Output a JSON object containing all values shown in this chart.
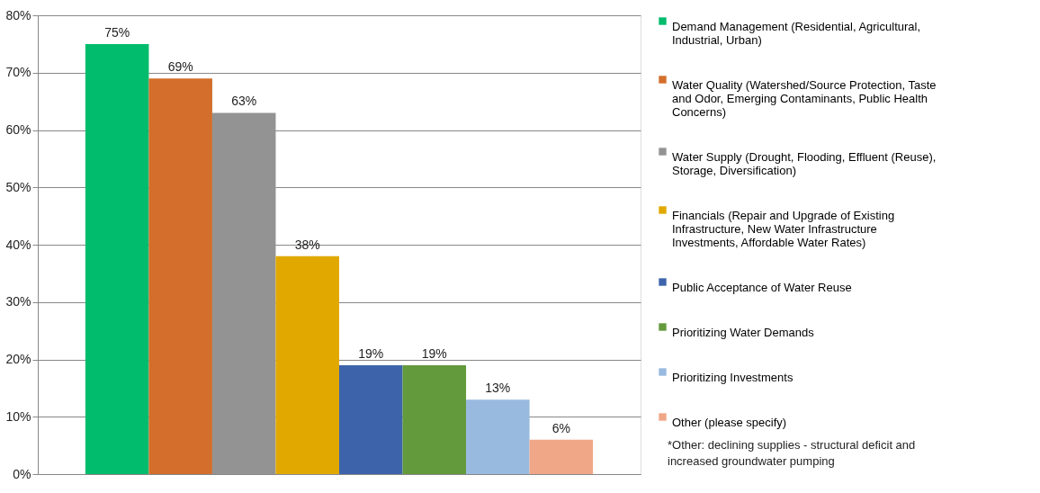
{
  "chart_data": {
    "type": "bar",
    "categories": [
      null
    ],
    "series": [
      {
        "name": "Demand Management (Residential, Agricultural, Industrial, Urban)",
        "color": "#00bc6c",
        "values": [
          75
        ],
        "value_labels": [
          "75%"
        ]
      },
      {
        "name": "Water Quality (Watershed/Source Protection, Taste and Odor, Emerging Contaminants, Public Health Concerns)",
        "color": "#d36e2c",
        "values": [
          69
        ],
        "value_labels": [
          "69%"
        ]
      },
      {
        "name": "Water Supply (Drought, Flooding, Effluent (Reuse), Storage, Diversification)",
        "color": "#939393",
        "values": [
          63
        ],
        "value_labels": [
          "63%"
        ]
      },
      {
        "name": "Financials (Repair and Upgrade of Existing Infrastructure, New Water Infrastructure Investments, Affordable Water Rates)",
        "color": "#e1a900",
        "values": [
          38
        ],
        "value_labels": [
          "38%"
        ]
      },
      {
        "name": "Public Acceptance of Water Reuse",
        "color": "#3d64ab",
        "values": [
          19
        ],
        "value_labels": [
          "19%"
        ]
      },
      {
        "name": "Prioritizing Water Demands",
        "color": "#639a3c",
        "values": [
          19
        ],
        "value_labels": [
          "19%"
        ]
      },
      {
        "name": "Prioritizing Investments",
        "color": "#99badf",
        "values": [
          13
        ],
        "value_labels": [
          "13%"
        ]
      },
      {
        "name": "Other (please specify)",
        "color": "#f0a787",
        "values": [
          6
        ],
        "value_labels": [
          "6%"
        ]
      }
    ],
    "ylim": [
      0,
      80
    ],
    "yticks": [
      {
        "value": 0,
        "label": "0%"
      },
      {
        "value": 10,
        "label": "10%"
      },
      {
        "value": 20,
        "label": "20%"
      },
      {
        "value": 30,
        "label": "30%"
      },
      {
        "value": 40,
        "label": "40%"
      },
      {
        "value": 50,
        "label": "50%"
      },
      {
        "value": 60,
        "label": "60%"
      },
      {
        "value": 70,
        "label": "70%"
      },
      {
        "value": 80,
        "label": "80%"
      }
    ],
    "grid": "y",
    "legend": "right",
    "tick_labels": "y",
    "annotations": [
      "*Other: declining supplies - structural deficit and increased groundwater pumping"
    ]
  }
}
